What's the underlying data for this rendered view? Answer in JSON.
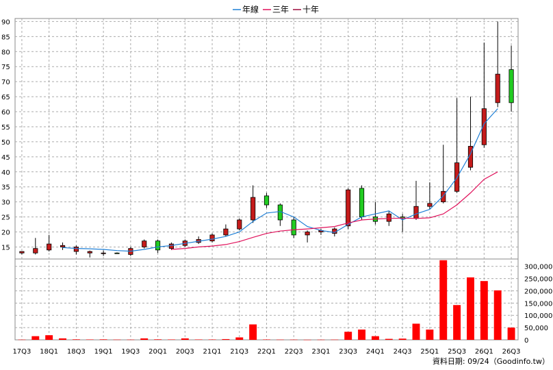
{
  "chart_data": {
    "type": "candlestick",
    "legend": [
      {
        "name": "年線",
        "color": "#1E7FD6"
      },
      {
        "name": "三年",
        "color": "#E0105A"
      },
      {
        "name": "十年",
        "color": "#9C0A3C"
      }
    ],
    "x_tick_labels": [
      "17Q3",
      "18Q1",
      "18Q3",
      "19Q1",
      "19Q3",
      "20Q1",
      "20Q3",
      "21Q1",
      "21Q3",
      "22Q1",
      "22Q3",
      "23Q1",
      "23Q3",
      "24Q1",
      "24Q3",
      "25Q1",
      "25Q3",
      "26Q1",
      "26Q3"
    ],
    "price_axis": {
      "ylim": [
        11,
        91
      ],
      "ticks": [
        15,
        20,
        25,
        30,
        35,
        40,
        45,
        50,
        55,
        60,
        65,
        70,
        75,
        80,
        85,
        90
      ]
    },
    "volume_axis": {
      "ylim": [
        0,
        330000
      ],
      "ticks": [
        "0",
        "50,000",
        "100,000",
        "150,000",
        "200,000",
        "250,000",
        "300,000"
      ],
      "tick_values": [
        0,
        50000,
        100000,
        150000,
        200000,
        250000,
        300000
      ]
    },
    "candles": [
      {
        "label": "17Q3",
        "open": 13,
        "high": 13.5,
        "low": 12.5,
        "close": 13.5
      },
      {
        "label": "17Q4",
        "open": 13,
        "high": 18,
        "low": 12.5,
        "close": 14.5
      },
      {
        "label": "18Q1",
        "open": 14,
        "high": 19,
        "low": 13.5,
        "close": 16
      },
      {
        "label": "18Q2",
        "open": 15,
        "high": 16.5,
        "low": 14,
        "close": 15.5
      },
      {
        "label": "18Q3",
        "open": 13.5,
        "high": 15.5,
        "low": 12.5,
        "close": 15
      },
      {
        "label": "18Q4",
        "open": 13,
        "high": 13.8,
        "low": 11.5,
        "close": 13.5
      },
      {
        "label": "19Q1",
        "open": 13,
        "high": 13.8,
        "low": 12,
        "close": 13
      },
      {
        "label": "19Q2",
        "open": 13,
        "high": 13.2,
        "low": 12.8,
        "close": 12.9
      },
      {
        "label": "19Q3",
        "open": 12.5,
        "high": 15,
        "low": 12,
        "close": 14.5
      },
      {
        "label": "19Q4",
        "open": 15,
        "high": 17.5,
        "low": 14.5,
        "close": 17
      },
      {
        "label": "20Q1",
        "open": 17,
        "high": 17.5,
        "low": 13,
        "close": 14
      },
      {
        "label": "20Q2",
        "open": 14.5,
        "high": 16.5,
        "low": 14,
        "close": 16
      },
      {
        "label": "20Q3",
        "open": 15.5,
        "high": 17.5,
        "low": 15,
        "close": 17
      },
      {
        "label": "20Q4",
        "open": 16.5,
        "high": 18.5,
        "low": 16,
        "close": 17.5
      },
      {
        "label": "21Q1",
        "open": 17,
        "high": 19.5,
        "low": 16.5,
        "close": 19
      },
      {
        "label": "21Q2",
        "open": 19,
        "high": 22.5,
        "low": 18.5,
        "close": 21
      },
      {
        "label": "21Q3",
        "open": 21,
        "high": 24.5,
        "low": 20.5,
        "close": 24
      },
      {
        "label": "21Q4",
        "open": 24,
        "high": 35.5,
        "low": 23,
        "close": 31.5
      },
      {
        "label": "22Q1",
        "open": 32,
        "high": 33,
        "low": 28,
        "close": 29
      },
      {
        "label": "22Q2",
        "open": 29,
        "high": 29.5,
        "low": 22,
        "close": 24
      },
      {
        "label": "22Q3",
        "open": 24,
        "high": 25,
        "low": 18,
        "close": 19
      },
      {
        "label": "22Q4",
        "open": 19,
        "high": 20.5,
        "low": 16.5,
        "close": 20
      },
      {
        "label": "23Q1",
        "open": 20,
        "high": 21,
        "low": 19,
        "close": 20.5
      },
      {
        "label": "23Q2",
        "open": 19.5,
        "high": 21.5,
        "low": 18.5,
        "close": 21
      },
      {
        "label": "23Q3",
        "open": 22,
        "high": 34.5,
        "low": 21,
        "close": 34
      },
      {
        "label": "23Q4",
        "open": 34.5,
        "high": 35.5,
        "low": 24,
        "close": 25
      },
      {
        "label": "24Q1",
        "open": 25,
        "high": 30,
        "low": 22.5,
        "close": 23.5
      },
      {
        "label": "24Q2",
        "open": 23.5,
        "high": 27,
        "low": 22,
        "close": 26
      },
      {
        "label": "24Q3",
        "open": 25,
        "high": 26,
        "low": 20,
        "close": 24.5
      },
      {
        "label": "24Q4",
        "open": 24.5,
        "high": 37,
        "low": 24,
        "close": 28.5
      },
      {
        "label": "25Q1",
        "open": 28.5,
        "high": 36.5,
        "low": 27.5,
        "close": 29.5
      },
      {
        "label": "25Q2",
        "open": 30,
        "high": 49,
        "low": 29.5,
        "close": 33.5
      },
      {
        "label": "25Q3",
        "open": 33.5,
        "high": 64.5,
        "low": 33,
        "close": 43
      },
      {
        "label": "25Q4",
        "open": 41.5,
        "high": 65,
        "low": 40.5,
        "close": 48.5
      },
      {
        "label": "26Q1",
        "open": 49,
        "high": 83,
        "low": 48,
        "close": 61
      },
      {
        "label": "26Q2",
        "open": 63,
        "high": 90,
        "low": 61.5,
        "close": 72.5
      },
      {
        "label": "26Q3",
        "open": 74,
        "high": 82,
        "low": 60,
        "close": 63
      }
    ],
    "series": [
      {
        "name": "年線",
        "values": [
          null,
          null,
          null,
          14.8,
          14.5,
          14.4,
          14.2,
          13.8,
          13.6,
          14.2,
          15.0,
          15.5,
          16.2,
          16.9,
          17.6,
          18.5,
          20.0,
          23.5,
          26.3,
          26.8,
          25.0,
          21.8,
          20.5,
          19.8,
          22.5,
          25.0,
          26.0,
          27.0,
          24.0,
          26.0,
          27.5,
          32.0,
          38.0,
          46.0,
          56.0,
          61.0,
          null
        ]
      },
      {
        "name": "三年",
        "values": [
          null,
          null,
          null,
          null,
          null,
          null,
          null,
          null,
          null,
          null,
          null,
          14.2,
          14.5,
          15.0,
          15.3,
          15.8,
          16.8,
          18.2,
          19.5,
          20.3,
          20.7,
          21.0,
          21.4,
          21.8,
          23.0,
          24.0,
          24.3,
          24.5,
          24.6,
          24.5,
          24.7,
          26.0,
          29.0,
          33.0,
          37.5,
          40.0,
          null
        ]
      }
    ],
    "volume": [
      1000,
      15000,
      19000,
      6000,
      2000,
      1500,
      2000,
      1000,
      1000,
      6000,
      2000,
      1500,
      6000,
      1500,
      1500,
      3000,
      10000,
      63000,
      1500,
      1000,
      1000,
      500,
      800,
      1000,
      33000,
      42000,
      15000,
      4000,
      5000,
      66000,
      42000,
      325000,
      142000,
      255000,
      240000,
      202000,
      50000
    ]
  },
  "source_label": "資料日期: 09/24（Goodinfo.tw）"
}
